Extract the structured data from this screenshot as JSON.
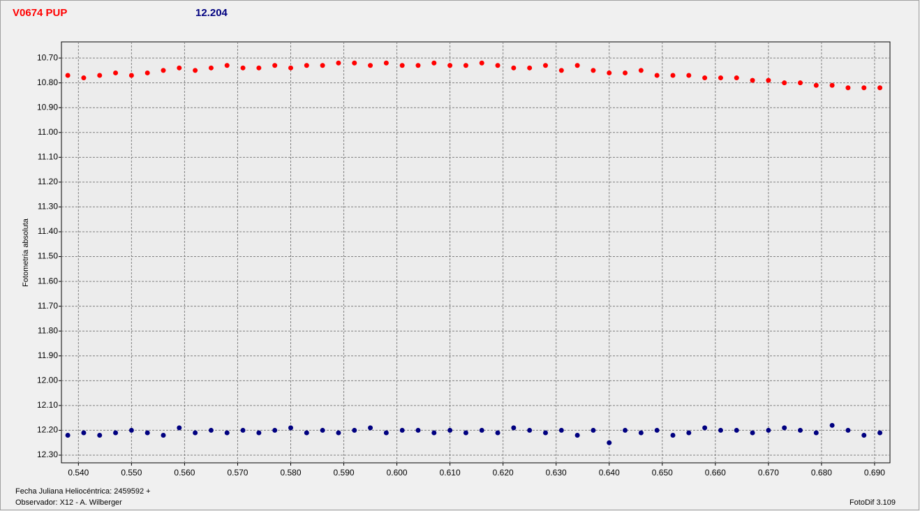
{
  "chart_data": {
    "type": "scatter",
    "title": "V0674 PUP",
    "subtitle": "12.204",
    "y_label": "Fotometría absoluta",
    "x_label": "Fecha Juliana Heliocéntrica: 2459592 +",
    "observer": "Observador: X12 - A. Wilberger",
    "software": "FotoDif 3.109",
    "grid": true,
    "y_inverted": true,
    "xlim": [
      0.5368,
      0.6929
    ],
    "ylim": [
      10.635,
      12.331
    ],
    "xticks": [
      {
        "value": 0.54,
        "label": "0.540"
      },
      {
        "value": 0.55,
        "label": "0.550"
      },
      {
        "value": 0.56,
        "label": "0.560"
      },
      {
        "value": 0.57,
        "label": "0.570"
      },
      {
        "value": 0.58,
        "label": "0.580"
      },
      {
        "value": 0.59,
        "label": "0.590"
      },
      {
        "value": 0.6,
        "label": "0.600"
      },
      {
        "value": 0.61,
        "label": "0.610"
      },
      {
        "value": 0.62,
        "label": "0.620"
      },
      {
        "value": 0.63,
        "label": "0.630"
      },
      {
        "value": 0.64,
        "label": "0.640"
      },
      {
        "value": 0.65,
        "label": "0.650"
      },
      {
        "value": 0.66,
        "label": "0.660"
      },
      {
        "value": 0.67,
        "label": "0.670"
      },
      {
        "value": 0.68,
        "label": "0.680"
      },
      {
        "value": 0.69,
        "label": "0.690"
      }
    ],
    "yticks": [
      {
        "value": 10.7,
        "label": "10.70"
      },
      {
        "value": 10.8,
        "label": "10.80"
      },
      {
        "value": 10.9,
        "label": "10.90"
      },
      {
        "value": 11,
        "label": "11.00"
      },
      {
        "value": 11.1,
        "label": "11.10"
      },
      {
        "value": 11.2,
        "label": "11.20"
      },
      {
        "value": 11.3,
        "label": "11.30"
      },
      {
        "value": 11.4,
        "label": "11.40"
      },
      {
        "value": 11.5,
        "label": "11.50"
      },
      {
        "value": 11.6,
        "label": "11.60"
      },
      {
        "value": 11.7,
        "label": "11.70"
      },
      {
        "value": 11.8,
        "label": "11.80"
      },
      {
        "value": 11.9,
        "label": "11.90"
      },
      {
        "value": 12,
        "label": "12.00"
      },
      {
        "value": 12.1,
        "label": "12.10"
      },
      {
        "value": 12.2,
        "label": "12.20"
      },
      {
        "value": 12.3,
        "label": "12.30"
      }
    ],
    "x": [
      0.538,
      0.541,
      0.544,
      0.547,
      0.55,
      0.553,
      0.556,
      0.559,
      0.562,
      0.565,
      0.568,
      0.571,
      0.574,
      0.577,
      0.58,
      0.583,
      0.586,
      0.589,
      0.592,
      0.595,
      0.598,
      0.601,
      0.604,
      0.607,
      0.61,
      0.613,
      0.616,
      0.619,
      0.622,
      0.625,
      0.628,
      0.631,
      0.634,
      0.637,
      0.64,
      0.643,
      0.646,
      0.649,
      0.652,
      0.655,
      0.658,
      0.661,
      0.664,
      0.667,
      0.67,
      0.673,
      0.676,
      0.679,
      0.682,
      0.685,
      0.688,
      0.691
    ],
    "series": [
      {
        "color": "#ff0000",
        "values": [
          10.77,
          10.78,
          10.77,
          10.76,
          10.77,
          10.76,
          10.75,
          10.74,
          10.75,
          10.74,
          10.73,
          10.74,
          10.74,
          10.73,
          10.74,
          10.73,
          10.73,
          10.72,
          10.72,
          10.73,
          10.72,
          10.73,
          10.73,
          10.72,
          10.73,
          10.73,
          10.72,
          10.73,
          10.74,
          10.74,
          10.73,
          10.75,
          10.73,
          10.75,
          10.76,
          10.76,
          10.75,
          10.77,
          10.77,
          10.77,
          10.78,
          10.78,
          10.78,
          10.79,
          10.79,
          10.8,
          10.8,
          10.81,
          10.81,
          10.82,
          10.82,
          10.82
        ]
      },
      {
        "color": "#000080",
        "values": [
          12.22,
          12.21,
          12.22,
          12.21,
          12.2,
          12.21,
          12.22,
          12.19,
          12.21,
          12.2,
          12.21,
          12.2,
          12.21,
          12.2,
          12.19,
          12.21,
          12.2,
          12.21,
          12.2,
          12.19,
          12.21,
          12.2,
          12.2,
          12.21,
          12.2,
          12.21,
          12.2,
          12.21,
          12.19,
          12.2,
          12.21,
          12.2,
          12.22,
          12.2,
          12.25,
          12.2,
          12.21,
          12.2,
          12.22,
          12.21,
          12.19,
          12.2,
          12.2,
          12.21,
          12.2,
          12.19,
          12.2,
          12.21,
          12.18,
          12.2,
          12.22,
          12.21
        ]
      }
    ]
  }
}
